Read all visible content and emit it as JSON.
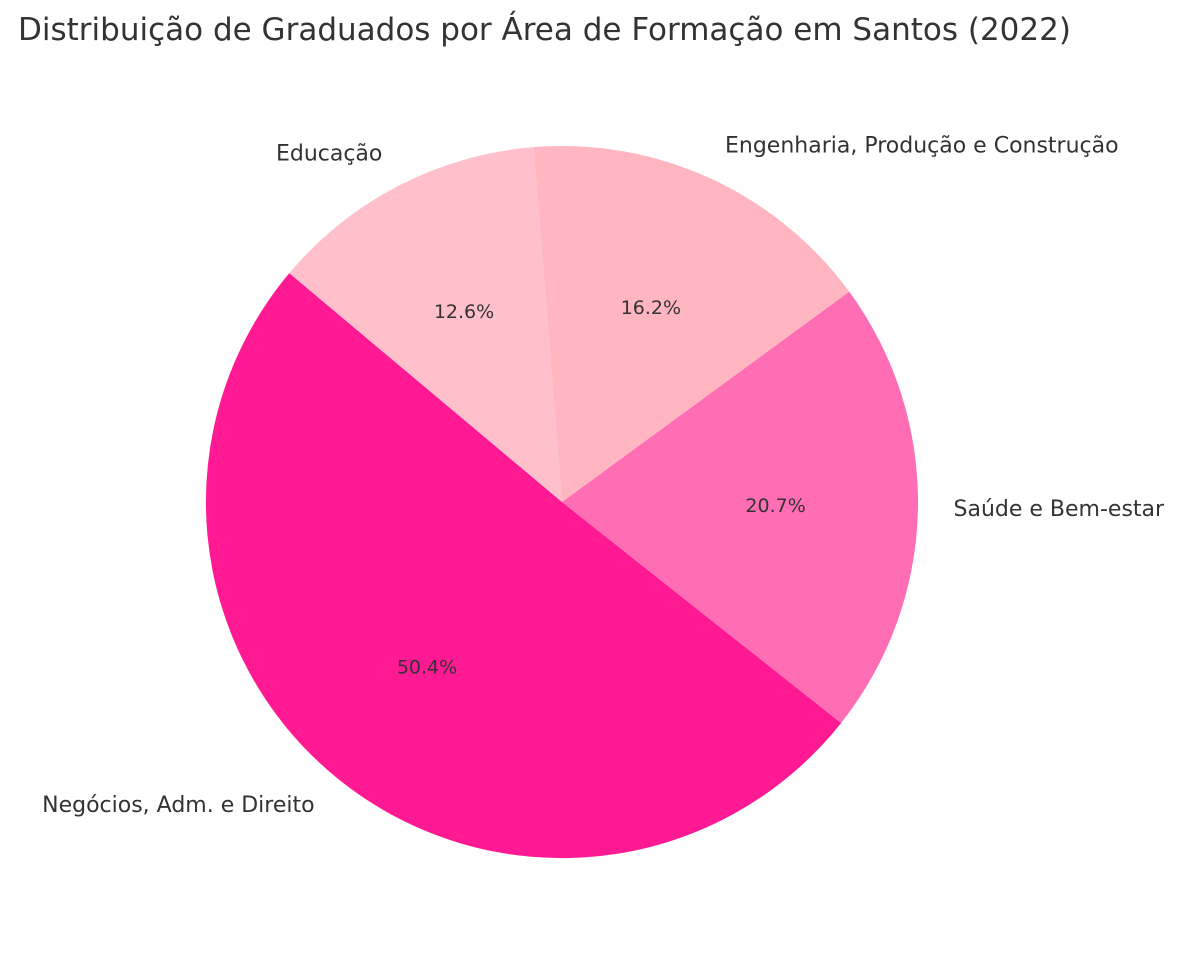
{
  "chart_data": {
    "type": "pie",
    "title": "Distribuição de Graduados por Área de Formação em Santos (2022)",
    "slices": [
      {
        "label": "Negócios, Adm. e Direito",
        "value": 50.4,
        "pct_label": "50.4%",
        "color": "#FF1A94"
      },
      {
        "label": "Saúde e Bem-estar",
        "value": 20.7,
        "pct_label": "20.7%",
        "color": "#FF6EB4"
      },
      {
        "label": "Engenharia, Produção e Construção",
        "value": 16.2,
        "pct_label": "16.2%",
        "color": "#FFB6C1"
      },
      {
        "label": "Educação",
        "value": 12.6,
        "pct_label": "12.6%",
        "color": "#FFC0CB"
      }
    ]
  }
}
